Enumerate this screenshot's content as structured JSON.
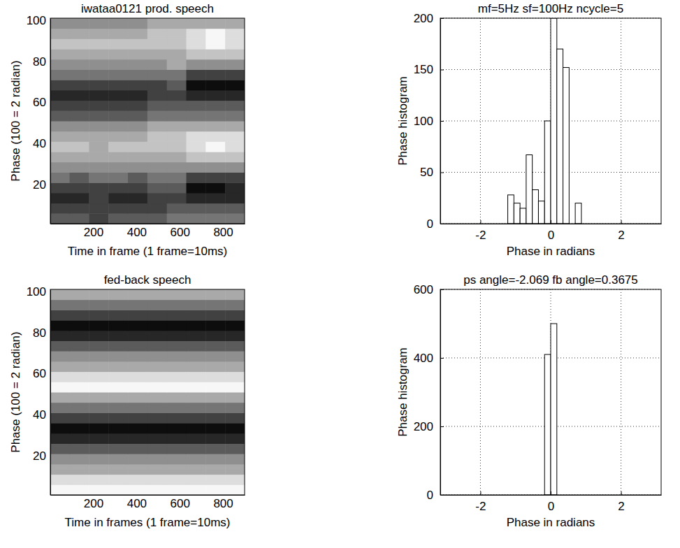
{
  "chart_data": [
    {
      "type": "heatmap",
      "title": "iwataa0121 prod. speech",
      "xlabel": "Time in frame (1 frame=10ms)",
      "ylabel": "Phase (100 = 2 radian)",
      "xlim": [
        1,
        900
      ],
      "ylim": [
        1,
        101
      ],
      "xticks": [
        200,
        400,
        600,
        800
      ],
      "yticks": [
        20,
        40,
        60,
        80,
        100
      ],
      "grid": false,
      "xbins": [
        0,
        90,
        180,
        270,
        360,
        450,
        540,
        630,
        720,
        810,
        900
      ],
      "ybins": [
        1,
        6,
        11,
        16,
        21,
        26,
        31,
        36,
        41,
        46,
        51,
        56,
        61,
        66,
        71,
        76,
        81,
        86,
        91,
        96,
        101
      ],
      "zlim": [
        0,
        9
      ],
      "z": [
        [
          3,
          3,
          2,
          3,
          3,
          3,
          4,
          4,
          4,
          4
        ],
        [
          2,
          2,
          2,
          2,
          2,
          2,
          3,
          3,
          3,
          3
        ],
        [
          1,
          1,
          2,
          1,
          1,
          2,
          2,
          1,
          1,
          1
        ],
        [
          2,
          2,
          2,
          2,
          2,
          3,
          3,
          0,
          0,
          1
        ],
        [
          4,
          3,
          4,
          4,
          3,
          4,
          4,
          2,
          2,
          2
        ],
        [
          5,
          5,
          5,
          5,
          5,
          5,
          5,
          5,
          5,
          5
        ],
        [
          6,
          6,
          6,
          6,
          6,
          6,
          6,
          7,
          7,
          7
        ],
        [
          7,
          7,
          6,
          7,
          7,
          7,
          7,
          8,
          9,
          8
        ],
        [
          6,
          6,
          6,
          6,
          6,
          7,
          7,
          8,
          8,
          8
        ],
        [
          5,
          5,
          5,
          5,
          5,
          6,
          6,
          6,
          6,
          6
        ],
        [
          3,
          3,
          3,
          3,
          3,
          4,
          4,
          4,
          4,
          4
        ],
        [
          2,
          2,
          2,
          2,
          2,
          3,
          3,
          3,
          3,
          3
        ],
        [
          1,
          1,
          1,
          1,
          1,
          2,
          2,
          1,
          1,
          1
        ],
        [
          2,
          2,
          2,
          2,
          2,
          2,
          3,
          0,
          0,
          0
        ],
        [
          4,
          4,
          4,
          4,
          4,
          4,
          4,
          2,
          2,
          2
        ],
        [
          5,
          5,
          5,
          5,
          5,
          5,
          6,
          5,
          5,
          5
        ],
        [
          6,
          6,
          6,
          6,
          6,
          6,
          6,
          7,
          7,
          7
        ],
        [
          7,
          7,
          7,
          7,
          7,
          7,
          7,
          8,
          9,
          8
        ],
        [
          6,
          6,
          6,
          6,
          6,
          7,
          7,
          8,
          9,
          8
        ],
        [
          5,
          5,
          5,
          5,
          5,
          6,
          6,
          6,
          6,
          6
        ]
      ]
    },
    {
      "type": "histogram",
      "title": "mf=5Hz sf=100Hz ncycle=5",
      "xlabel": "Phase in radians",
      "ylabel": "Phase histogram",
      "xlim": [
        -3.1416,
        3.1416
      ],
      "ylim": [
        0,
        200
      ],
      "xticks": [
        -2,
        0,
        2
      ],
      "yticks": [
        0,
        50,
        100,
        150,
        200
      ],
      "grid": true,
      "color": "#ffffff",
      "bins": [
        -1.2217,
        -1.0472,
        -0.8727,
        -0.6981,
        -0.5236,
        -0.3491,
        -0.1745,
        0,
        0.1745,
        0.3491,
        0.5236,
        0.6981,
        0.8727
      ],
      "counts": [
        28,
        20,
        15,
        67,
        33,
        22,
        100,
        200,
        170,
        152,
        0,
        20
      ]
    },
    {
      "type": "heatmap",
      "title": "fed-back speech",
      "xlabel": "Time in frames (1 frame=10ms)",
      "ylabel": "Phase (100 = 2 radian)",
      "xlim": [
        1,
        900
      ],
      "ylim": [
        1,
        101
      ],
      "xticks": [
        200,
        400,
        600,
        800
      ],
      "yticks": [
        20,
        40,
        60,
        80,
        100
      ],
      "grid": false,
      "xbins": [
        0,
        90,
        180,
        270,
        360,
        450,
        540,
        630,
        720,
        810,
        900
      ],
      "ybins": [
        1,
        6,
        11,
        16,
        21,
        26,
        31,
        36,
        41,
        46,
        51,
        56,
        61,
        66,
        71,
        76,
        81,
        86,
        91,
        96,
        101
      ],
      "zlim": [
        0,
        9
      ],
      "z": [
        [
          9,
          9,
          9,
          9,
          9,
          9,
          9,
          9,
          9,
          9
        ],
        [
          8,
          8,
          8,
          8,
          8,
          8,
          8,
          8,
          8,
          8
        ],
        [
          6,
          6,
          6,
          6,
          6,
          6,
          6,
          6,
          6,
          6
        ],
        [
          5,
          5,
          5,
          5,
          5,
          5,
          5,
          5,
          5,
          5
        ],
        [
          3,
          3,
          3,
          3,
          3,
          3,
          3,
          3,
          3,
          3
        ],
        [
          1,
          1,
          1,
          1,
          1,
          1,
          1,
          1,
          1,
          1
        ],
        [
          0,
          0,
          0,
          0,
          0,
          0,
          0,
          0,
          0,
          0
        ],
        [
          2,
          2,
          2,
          2,
          2,
          2,
          2,
          2,
          2,
          2
        ],
        [
          4,
          4,
          4,
          4,
          4,
          4,
          4,
          4,
          4,
          4
        ],
        [
          6,
          6,
          6,
          6,
          6,
          6,
          6,
          6,
          6,
          6
        ],
        [
          9,
          9,
          9,
          9,
          9,
          9,
          9,
          9,
          9,
          9
        ],
        [
          8,
          8,
          8,
          8,
          8,
          8,
          8,
          8,
          8,
          8
        ],
        [
          6,
          6,
          6,
          6,
          6,
          6,
          6,
          6,
          6,
          6
        ],
        [
          5,
          5,
          5,
          5,
          5,
          5,
          5,
          5,
          5,
          5
        ],
        [
          3,
          3,
          3,
          3,
          3,
          3,
          3,
          3,
          3,
          3
        ],
        [
          1,
          1,
          1,
          1,
          1,
          1,
          1,
          1,
          1,
          1
        ],
        [
          0,
          0,
          0,
          0,
          0,
          0,
          0,
          0,
          0,
          0
        ],
        [
          2,
          2,
          2,
          2,
          2,
          2,
          2,
          2,
          2,
          2
        ],
        [
          4,
          4,
          4,
          4,
          4,
          4,
          4,
          4,
          4,
          4
        ],
        [
          6,
          6,
          6,
          6,
          6,
          6,
          6,
          6,
          6,
          6
        ]
      ]
    },
    {
      "type": "histogram",
      "title": "ps angle=-2.069 fb angle=0.3675",
      "xlabel": "Phase in radians",
      "ylabel": "Phase histogram",
      "xlim": [
        -3.1416,
        3.1416
      ],
      "ylim": [
        0,
        600
      ],
      "xticks": [
        -2,
        0,
        2
      ],
      "yticks": [
        0,
        200,
        400,
        600
      ],
      "grid": true,
      "color": "#ffffff",
      "bins": [
        -0.1745,
        0,
        0.1745
      ],
      "counts": [
        410,
        500
      ]
    }
  ]
}
